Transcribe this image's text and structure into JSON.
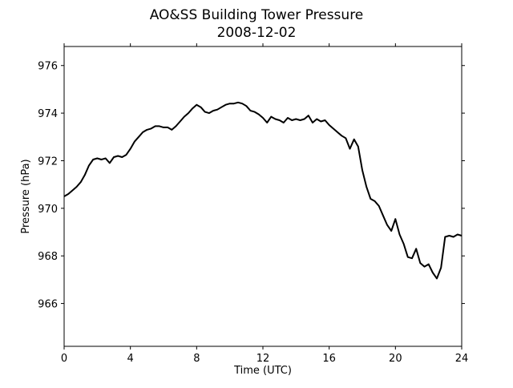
{
  "chart_data": {
    "type": "line",
    "title": "AO&SS Building Tower Pressure",
    "subtitle": "2008-12-02",
    "xlabel": "Time (UTC)",
    "ylabel": "Pressure (hPa)",
    "xlim": [
      0,
      24
    ],
    "ylim": [
      964.2,
      976.8
    ],
    "x_ticks": [
      0,
      4,
      8,
      12,
      16,
      20,
      24
    ],
    "y_ticks": [
      966,
      968,
      970,
      972,
      974,
      976
    ],
    "grid": false,
    "legend": "none",
    "series": [
      {
        "color": "#000000",
        "x": [
          0,
          0.25,
          0.5,
          0.75,
          1.0,
          1.25,
          1.5,
          1.75,
          2.0,
          2.25,
          2.5,
          2.75,
          3.0,
          3.25,
          3.5,
          3.75,
          4.0,
          4.25,
          4.5,
          4.75,
          5.0,
          5.25,
          5.5,
          5.75,
          6.0,
          6.25,
          6.5,
          6.75,
          7.0,
          7.25,
          7.5,
          7.75,
          8.0,
          8.25,
          8.5,
          8.75,
          9.0,
          9.25,
          9.5,
          9.75,
          10.0,
          10.25,
          10.5,
          10.75,
          11.0,
          11.25,
          11.5,
          11.75,
          12.0,
          12.25,
          12.5,
          12.75,
          13.0,
          13.25,
          13.5,
          13.75,
          14.0,
          14.25,
          14.5,
          14.75,
          15.0,
          15.25,
          15.5,
          15.75,
          16.0,
          16.25,
          16.5,
          16.75,
          17.0,
          17.25,
          17.5,
          17.75,
          18.0,
          18.25,
          18.5,
          18.75,
          19.0,
          19.25,
          19.5,
          19.75,
          20.0,
          20.25,
          20.5,
          20.75,
          21.0,
          21.25,
          21.5,
          21.75,
          22.0,
          22.25,
          22.5,
          22.75,
          23.0,
          23.25,
          23.5,
          23.75,
          24.0
        ],
        "values": [
          970.5,
          970.6,
          970.75,
          970.9,
          971.1,
          971.4,
          971.8,
          972.05,
          972.1,
          972.05,
          972.1,
          971.9,
          972.15,
          972.2,
          972.15,
          972.25,
          972.5,
          972.8,
          973.0,
          973.2,
          973.3,
          973.35,
          973.45,
          973.45,
          973.4,
          973.4,
          973.3,
          973.45,
          973.65,
          973.85,
          974.0,
          974.2,
          974.35,
          974.25,
          974.05,
          974.0,
          974.1,
          974.15,
          974.25,
          974.35,
          974.4,
          974.4,
          974.45,
          974.4,
          974.3,
          974.1,
          974.05,
          973.95,
          973.8,
          973.6,
          973.85,
          973.75,
          973.7,
          973.6,
          973.8,
          973.7,
          973.75,
          973.7,
          973.75,
          973.9,
          973.6,
          973.75,
          973.65,
          973.7,
          973.5,
          973.35,
          973.2,
          973.05,
          972.95,
          972.5,
          972.9,
          972.6,
          971.6,
          970.9,
          970.4,
          970.3,
          970.1,
          969.7,
          969.3,
          969.05,
          969.55,
          968.9,
          968.5,
          967.95,
          967.9,
          968.3,
          967.7,
          967.55,
          967.65,
          967.3,
          967.05,
          967.5,
          968.8,
          968.85,
          968.8,
          968.9,
          968.85
        ]
      }
    ]
  }
}
